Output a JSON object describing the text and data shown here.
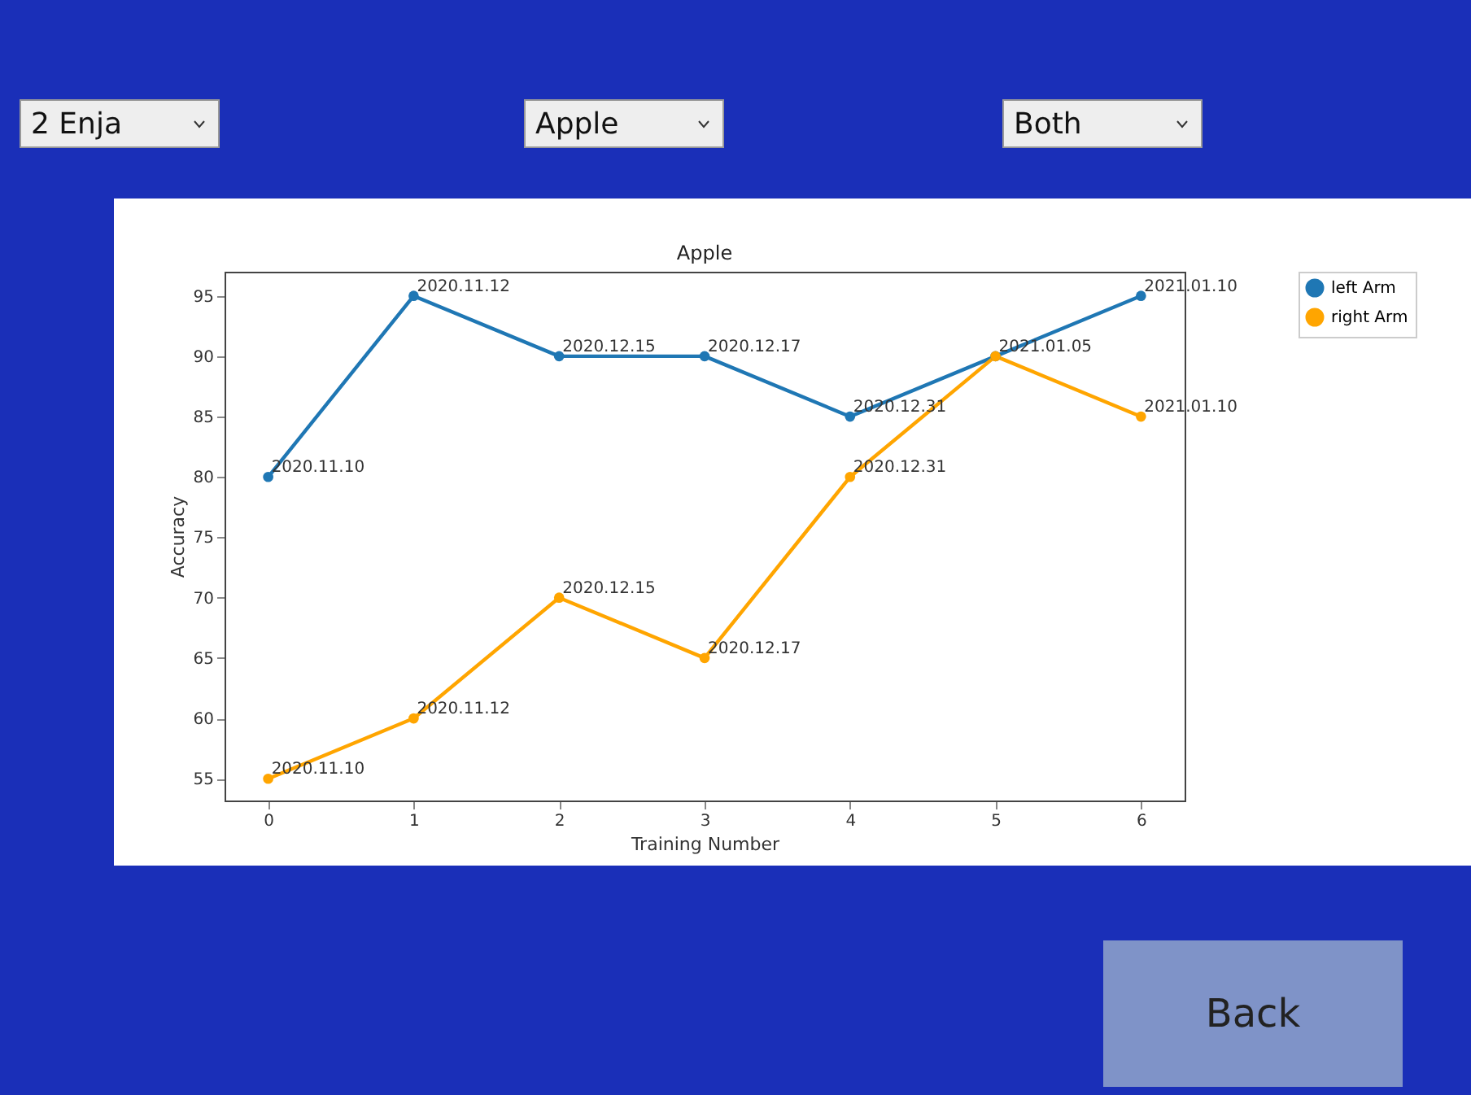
{
  "chart_data": {
    "type": "line",
    "title": "Apple",
    "xlabel": "Training Number",
    "ylabel": "Accuracy",
    "x": [
      0,
      1,
      2,
      3,
      4,
      5,
      6
    ],
    "series": [
      {
        "name": "left Arm",
        "color": "#1f77b4",
        "values": [
          80,
          95,
          90,
          90,
          85,
          90,
          95
        ]
      },
      {
        "name": "right Arm",
        "color": "#ffa500",
        "values": [
          55,
          60,
          70,
          65,
          80,
          90,
          85
        ]
      }
    ],
    "xlim": [
      -0.3,
      6.3
    ],
    "ylim": [
      53.2,
      97
    ],
    "xticks": [
      0,
      1,
      2,
      3,
      4,
      5,
      6
    ],
    "yticks": [
      55,
      60,
      65,
      70,
      75,
      80,
      85,
      90,
      95
    ],
    "marker": "circle",
    "legend": "top right",
    "grid": false,
    "annotations": [
      "2  Enja",
      "Apple",
      "Both",
      "Back",
      {
        "text": "2020.11.10",
        "x": 0,
        "y": 80
      },
      {
        "text": "2020.11.12",
        "x": 1,
        "y": 95
      },
      {
        "text": "2020.12.15",
        "x": 2,
        "y": 90
      },
      {
        "text": "2020.12.17",
        "x": 3,
        "y": 90
      },
      {
        "text": "2020.12.31",
        "x": 4,
        "y": 85
      },
      {
        "text": "2021.01.05",
        "x": 5,
        "y": 90
      },
      {
        "text": "2021.01.10",
        "x": 6,
        "y": 95
      },
      {
        "text": "2020.11.10",
        "x": 0,
        "y": 55
      },
      {
        "text": "2020.11.12",
        "x": 1,
        "y": 60
      },
      {
        "text": "2020.12.15",
        "x": 2,
        "y": 70
      },
      {
        "text": "2020.12.17",
        "x": 3,
        "y": 65
      },
      {
        "text": "2020.12.31",
        "x": 4,
        "y": 80
      },
      {
        "text": "2021.01.10",
        "x": 6,
        "y": 85
      }
    ]
  }
}
